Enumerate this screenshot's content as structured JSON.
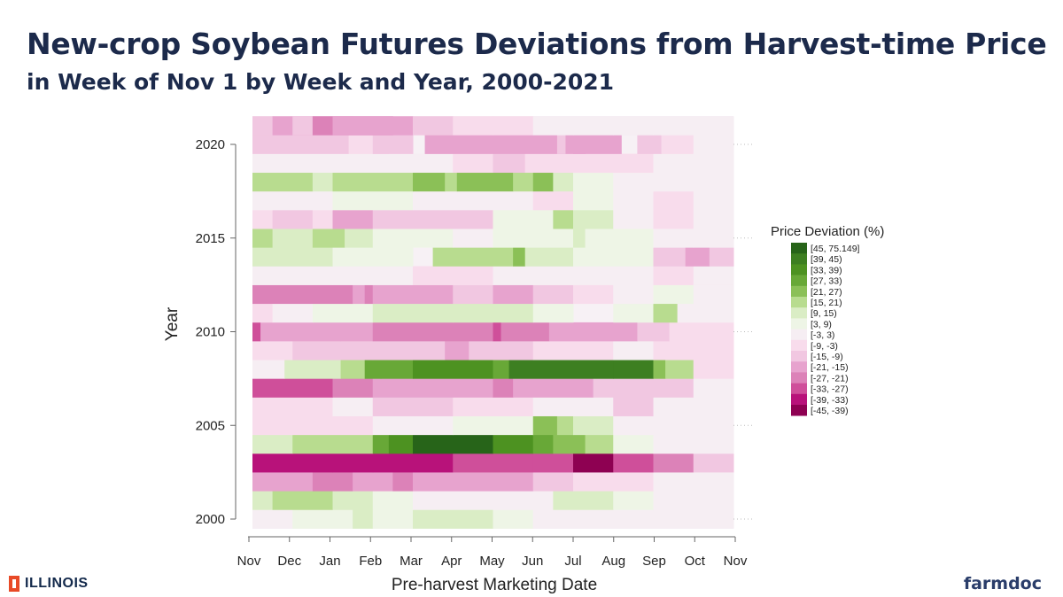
{
  "header": {
    "title": "New-crop Soybean Futures Deviations from Harvest-time Price",
    "subtitle": "in Week of Nov 1 by Week and Year, 2000-2021"
  },
  "logos": {
    "left": "ILLINOIS",
    "right": "farmdoc"
  },
  "chart_data": {
    "type": "heatmap",
    "title": "New-crop Soybean Futures Deviations from Harvest-time Price",
    "subtitle": "in Week of Nov 1 by Week and Year, 2000-2021",
    "xlabel": "Pre-harvest Marketing Date",
    "ylabel": "Year",
    "x_ticks": [
      "Nov",
      "Dec",
      "Jan",
      "Feb",
      "Mar",
      "Apr",
      "May",
      "Jun",
      "Jul",
      "Aug",
      "Sep",
      "Oct",
      "Nov"
    ],
    "y_ticks": [
      "2000",
      "2005",
      "2010",
      "2015",
      "2020"
    ],
    "years": [
      2000,
      2001,
      2002,
      2003,
      2004,
      2005,
      2006,
      2007,
      2008,
      2009,
      2010,
      2011,
      2012,
      2013,
      2014,
      2015,
      2016,
      2017,
      2018,
      2019,
      2020,
      2021
    ],
    "months": 12,
    "legend": {
      "title": "Price Deviation (%)",
      "position": "right",
      "bins": [
        {
          "label": "[45, 75.149]",
          "color": "#276419"
        },
        {
          "label": "[39, 45)",
          "color": "#3d7f21"
        },
        {
          "label": "[33, 39)",
          "color": "#4d9221"
        },
        {
          "label": "[27, 33)",
          "color": "#68a837"
        },
        {
          "label": "[21, 27)",
          "color": "#8bc057"
        },
        {
          "label": "[15, 21)",
          "color": "#b8dc8f"
        },
        {
          "label": "[9, 15)",
          "color": "#daedc5"
        },
        {
          "label": "[3, 9)",
          "color": "#eef5e6"
        },
        {
          "label": "[-3, 3)",
          "color": "#f6eef3"
        },
        {
          "label": "[-9, -3)",
          "color": "#f8dcec"
        },
        {
          "label": "[-15, -9)",
          "color": "#f1c7e1"
        },
        {
          "label": "[-21, -15)",
          "color": "#e7a3ce"
        },
        {
          "label": "[-27, -21)",
          "color": "#dc82b8"
        },
        {
          "label": "[-33, -27)",
          "color": "#cf4f9a"
        },
        {
          "label": "[-39, -33)",
          "color": "#b8127a"
        },
        {
          "label": "[-45, -39)",
          "color": "#8e0152"
        }
      ]
    },
    "rows": {
      "2021": [
        [
          0,
          0.5,
          10
        ],
        [
          0.5,
          1,
          11
        ],
        [
          1,
          1.5,
          10
        ],
        [
          1.5,
          2,
          12
        ],
        [
          2,
          2,
          11
        ],
        [
          4,
          1,
          10
        ],
        [
          5,
          1,
          9
        ],
        [
          6,
          1,
          9
        ],
        [
          7,
          1,
          8
        ],
        [
          8,
          1,
          8
        ],
        [
          9,
          1,
          8
        ],
        [
          10,
          1,
          8
        ],
        [
          11,
          1,
          8
        ]
      ],
      "2020": [
        [
          0,
          2.4,
          10
        ],
        [
          2.4,
          1,
          9
        ],
        [
          3,
          1,
          10
        ],
        [
          4.3,
          4,
          11
        ],
        [
          7.6,
          0.2,
          10
        ],
        [
          8,
          1.2,
          11
        ],
        [
          9.6,
          0.6,
          10
        ],
        [
          10.2,
          0.8,
          9
        ],
        [
          11,
          1,
          8
        ]
      ],
      "2019": [
        [
          0,
          3,
          8
        ],
        [
          3,
          2,
          8
        ],
        [
          5,
          1,
          9
        ],
        [
          6,
          0.8,
          10
        ],
        [
          6.8,
          1.2,
          9
        ],
        [
          8,
          2,
          9
        ],
        [
          10,
          1,
          8
        ],
        [
          11,
          1,
          8
        ]
      ],
      "2018": [
        [
          0,
          1.5,
          5
        ],
        [
          1.5,
          0.5,
          6
        ],
        [
          2,
          2,
          5
        ],
        [
          4,
          0.8,
          4
        ],
        [
          4.8,
          0.3,
          5
        ],
        [
          5.1,
          1.4,
          4
        ],
        [
          6.5,
          0.5,
          5
        ],
        [
          7,
          0.5,
          4
        ],
        [
          7.5,
          0.5,
          6
        ],
        [
          8,
          1,
          7
        ],
        [
          9,
          1,
          8
        ],
        [
          10,
          1,
          8
        ],
        [
          11,
          1,
          8
        ]
      ],
      "2017": [
        [
          0,
          2,
          8
        ],
        [
          2,
          2,
          7
        ],
        [
          4,
          2,
          8
        ],
        [
          6,
          1,
          8
        ],
        [
          7,
          1,
          9
        ],
        [
          8,
          1,
          7
        ],
        [
          9,
          1,
          8
        ],
        [
          10,
          1,
          9
        ],
        [
          11,
          1,
          8
        ]
      ],
      "2016": [
        [
          0,
          0.5,
          9
        ],
        [
          0.5,
          1,
          10
        ],
        [
          1.5,
          0.5,
          9
        ],
        [
          2,
          1,
          11
        ],
        [
          3,
          2,
          10
        ],
        [
          5,
          1,
          10
        ],
        [
          6,
          1.5,
          7
        ],
        [
          7.5,
          0.5,
          5
        ],
        [
          8,
          1,
          6
        ],
        [
          9,
          1,
          8
        ],
        [
          10,
          1,
          9
        ],
        [
          11,
          1,
          8
        ]
      ],
      "2015": [
        [
          0,
          0.5,
          5
        ],
        [
          0.5,
          1,
          6
        ],
        [
          1.5,
          0.8,
          5
        ],
        [
          2.3,
          0.7,
          6
        ],
        [
          3,
          2,
          7
        ],
        [
          5,
          1,
          8
        ],
        [
          6,
          2,
          7
        ],
        [
          8,
          0.3,
          6
        ],
        [
          8.3,
          1.7,
          7
        ],
        [
          10,
          1,
          8
        ],
        [
          11,
          1,
          8
        ]
      ],
      "2014": [
        [
          0,
          2,
          6
        ],
        [
          2,
          2,
          7
        ],
        [
          4.5,
          2,
          5
        ],
        [
          6.5,
          0.3,
          4
        ],
        [
          6.8,
          1.2,
          6
        ],
        [
          8,
          2,
          7
        ],
        [
          10,
          0.8,
          10
        ],
        [
          10.8,
          0.6,
          11
        ],
        [
          11.4,
          0.6,
          10
        ]
      ],
      "2013": [
        [
          0,
          2,
          8
        ],
        [
          2,
          2,
          8
        ],
        [
          4,
          2,
          9
        ],
        [
          6,
          2,
          8
        ],
        [
          8,
          2,
          8
        ],
        [
          10,
          2,
          9
        ],
        [
          11,
          1,
          8
        ]
      ],
      "2012": [
        [
          0,
          2.5,
          12
        ],
        [
          2.5,
          0.3,
          11
        ],
        [
          2.8,
          0.2,
          12
        ],
        [
          3,
          2,
          11
        ],
        [
          5,
          1,
          10
        ],
        [
          6,
          1,
          11
        ],
        [
          7,
          1,
          10
        ],
        [
          8,
          1,
          9
        ],
        [
          9,
          1,
          8
        ],
        [
          10,
          1,
          7
        ],
        [
          11,
          1,
          8
        ]
      ],
      "2011": [
        [
          0,
          0.5,
          9
        ],
        [
          0.5,
          1,
          8
        ],
        [
          1.5,
          1.5,
          7
        ],
        [
          3,
          2,
          6
        ],
        [
          5,
          2,
          6
        ],
        [
          7,
          1,
          7
        ],
        [
          9,
          1,
          7
        ],
        [
          10,
          0.6,
          5
        ],
        [
          10.6,
          1.4,
          8
        ]
      ],
      "2010": [
        [
          0,
          0.2,
          13
        ],
        [
          0.2,
          2,
          11
        ],
        [
          2.2,
          0.8,
          11
        ],
        [
          3,
          3,
          12
        ],
        [
          6,
          0.2,
          13
        ],
        [
          6.2,
          1.2,
          12
        ],
        [
          7.4,
          2.2,
          11
        ],
        [
          9.6,
          0.8,
          10
        ],
        [
          10.4,
          1.6,
          9
        ]
      ],
      "2009": [
        [
          0,
          1,
          9
        ],
        [
          1,
          2,
          10
        ],
        [
          3,
          1.8,
          10
        ],
        [
          4.8,
          0.6,
          11
        ],
        [
          5.4,
          1.6,
          10
        ],
        [
          7,
          2,
          9
        ],
        [
          9,
          1,
          8
        ],
        [
          10,
          2,
          9
        ]
      ],
      "2008": [
        [
          0,
          0.8,
          8
        ],
        [
          0.8,
          1.4,
          6
        ],
        [
          2.2,
          0.6,
          5
        ],
        [
          2.8,
          0.4,
          3
        ],
        [
          3.2,
          0.8,
          3
        ],
        [
          4,
          2,
          2
        ],
        [
          6,
          0.4,
          3
        ],
        [
          6.4,
          2.6,
          1
        ],
        [
          9,
          1,
          1
        ],
        [
          10,
          0.3,
          4
        ],
        [
          10.3,
          0.7,
          5
        ],
        [
          11,
          1,
          9
        ]
      ],
      "2007": [
        [
          0,
          2,
          13
        ],
        [
          2,
          1,
          12
        ],
        [
          3,
          3,
          11
        ],
        [
          6,
          0.5,
          12
        ],
        [
          6.5,
          2,
          11
        ],
        [
          8.5,
          1.5,
          10
        ],
        [
          10,
          1,
          10
        ],
        [
          11,
          1,
          8
        ]
      ],
      "2006": [
        [
          0,
          2,
          9
        ],
        [
          2,
          1,
          8
        ],
        [
          3,
          2,
          10
        ],
        [
          5,
          2,
          9
        ],
        [
          7,
          2,
          8
        ],
        [
          9,
          1,
          10
        ],
        [
          10,
          1,
          8
        ],
        [
          11,
          1,
          8
        ]
      ],
      "2005": [
        [
          0,
          1,
          9
        ],
        [
          1,
          2,
          9
        ],
        [
          3,
          2,
          8
        ],
        [
          5,
          2,
          7
        ],
        [
          7,
          0.6,
          4
        ],
        [
          7.6,
          0.4,
          5
        ],
        [
          8,
          1,
          6
        ],
        [
          9,
          1,
          8
        ],
        [
          10,
          1,
          8
        ],
        [
          11,
          1,
          8
        ]
      ],
      "2004": [
        [
          0,
          1,
          6
        ],
        [
          1,
          2,
          5
        ],
        [
          3,
          0.4,
          3
        ],
        [
          3.4,
          0.6,
          2
        ],
        [
          4,
          2,
          0
        ],
        [
          6,
          1,
          2
        ],
        [
          7,
          0.5,
          3
        ],
        [
          7.5,
          0.8,
          4
        ],
        [
          8.3,
          0.7,
          5
        ],
        [
          9,
          1,
          7
        ],
        [
          10,
          1,
          8
        ],
        [
          11,
          1,
          8
        ]
      ],
      "2003": [
        [
          0,
          2,
          14
        ],
        [
          2,
          1,
          14
        ],
        [
          3,
          2,
          14
        ],
        [
          5,
          2,
          13
        ],
        [
          7,
          1,
          13
        ],
        [
          8,
          1,
          15
        ],
        [
          9,
          1,
          13
        ],
        [
          10,
          1,
          12
        ],
        [
          11,
          1,
          10
        ]
      ],
      "2002": [
        [
          0,
          1.5,
          11
        ],
        [
          1.5,
          1,
          12
        ],
        [
          2.5,
          1,
          11
        ],
        [
          3.5,
          0.5,
          12
        ],
        [
          4,
          3,
          11
        ],
        [
          7,
          1,
          10
        ],
        [
          8,
          1,
          9
        ],
        [
          9,
          1,
          9
        ],
        [
          10,
          1,
          8
        ],
        [
          11,
          1,
          8
        ]
      ],
      "2001": [
        [
          0,
          0.5,
          6
        ],
        [
          0.5,
          1.5,
          5
        ],
        [
          2,
          1,
          6
        ],
        [
          3,
          1,
          7
        ],
        [
          4,
          2,
          8
        ],
        [
          6,
          1.5,
          8
        ],
        [
          7.5,
          1.5,
          6
        ],
        [
          9,
          1,
          7
        ],
        [
          10,
          1,
          8
        ],
        [
          11,
          1,
          8
        ]
      ],
      "2000": [
        [
          0,
          1,
          8
        ],
        [
          1,
          1.5,
          7
        ],
        [
          2.5,
          0.5,
          6
        ],
        [
          3,
          1,
          7
        ],
        [
          4,
          2,
          6
        ],
        [
          6,
          1,
          7
        ],
        [
          7,
          3,
          8
        ],
        [
          10,
          2,
          8
        ]
      ]
    }
  }
}
